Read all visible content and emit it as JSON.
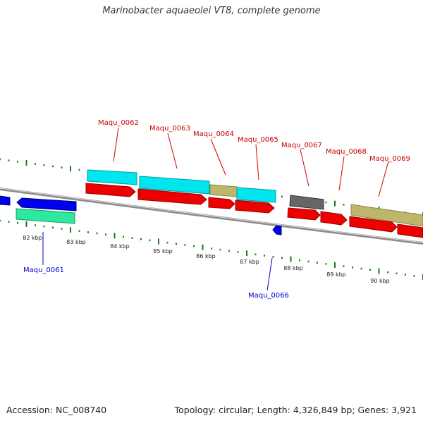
{
  "title": "Marinobacter aquaeolei VT8, complete genome",
  "footer": {
    "accession": "Accession: NC_008740",
    "summary": "Topology: circular; Length: 4,326,849 bp; Genes: 3,921"
  },
  "colors": {
    "backbone": "#8c8c8c",
    "tick": "#1a7a1a",
    "label_forward": "#cc0000",
    "label_reverse": "#0000cc",
    "cds_red": "#ee0000",
    "gene_cyan": "#00e5ee",
    "gene_khaki": "#bdb76b",
    "gene_grey": "#666666",
    "gene_blue": "#0000ee",
    "gene_green": "#2ee8a0"
  },
  "scale_labels": [
    "82 kbp",
    "83 kbp",
    "84 kbp",
    "85 kbp",
    "86 kbp",
    "87 kbp",
    "88 kbp",
    "89 kbp",
    "90 kbp"
  ],
  "gene_labels": {
    "maqu_0061": "Maqu_0061",
    "maqu_0062": "Maqu_0062",
    "maqu_0063": "Maqu_0063",
    "maqu_0064": "Maqu_0064",
    "maqu_0065": "Maqu_0065",
    "maqu_0066": "Maqu_0066",
    "maqu_0067": "Maqu_0067",
    "maqu_0068": "Maqu_0068",
    "maqu_0069": "Maqu_0069"
  }
}
